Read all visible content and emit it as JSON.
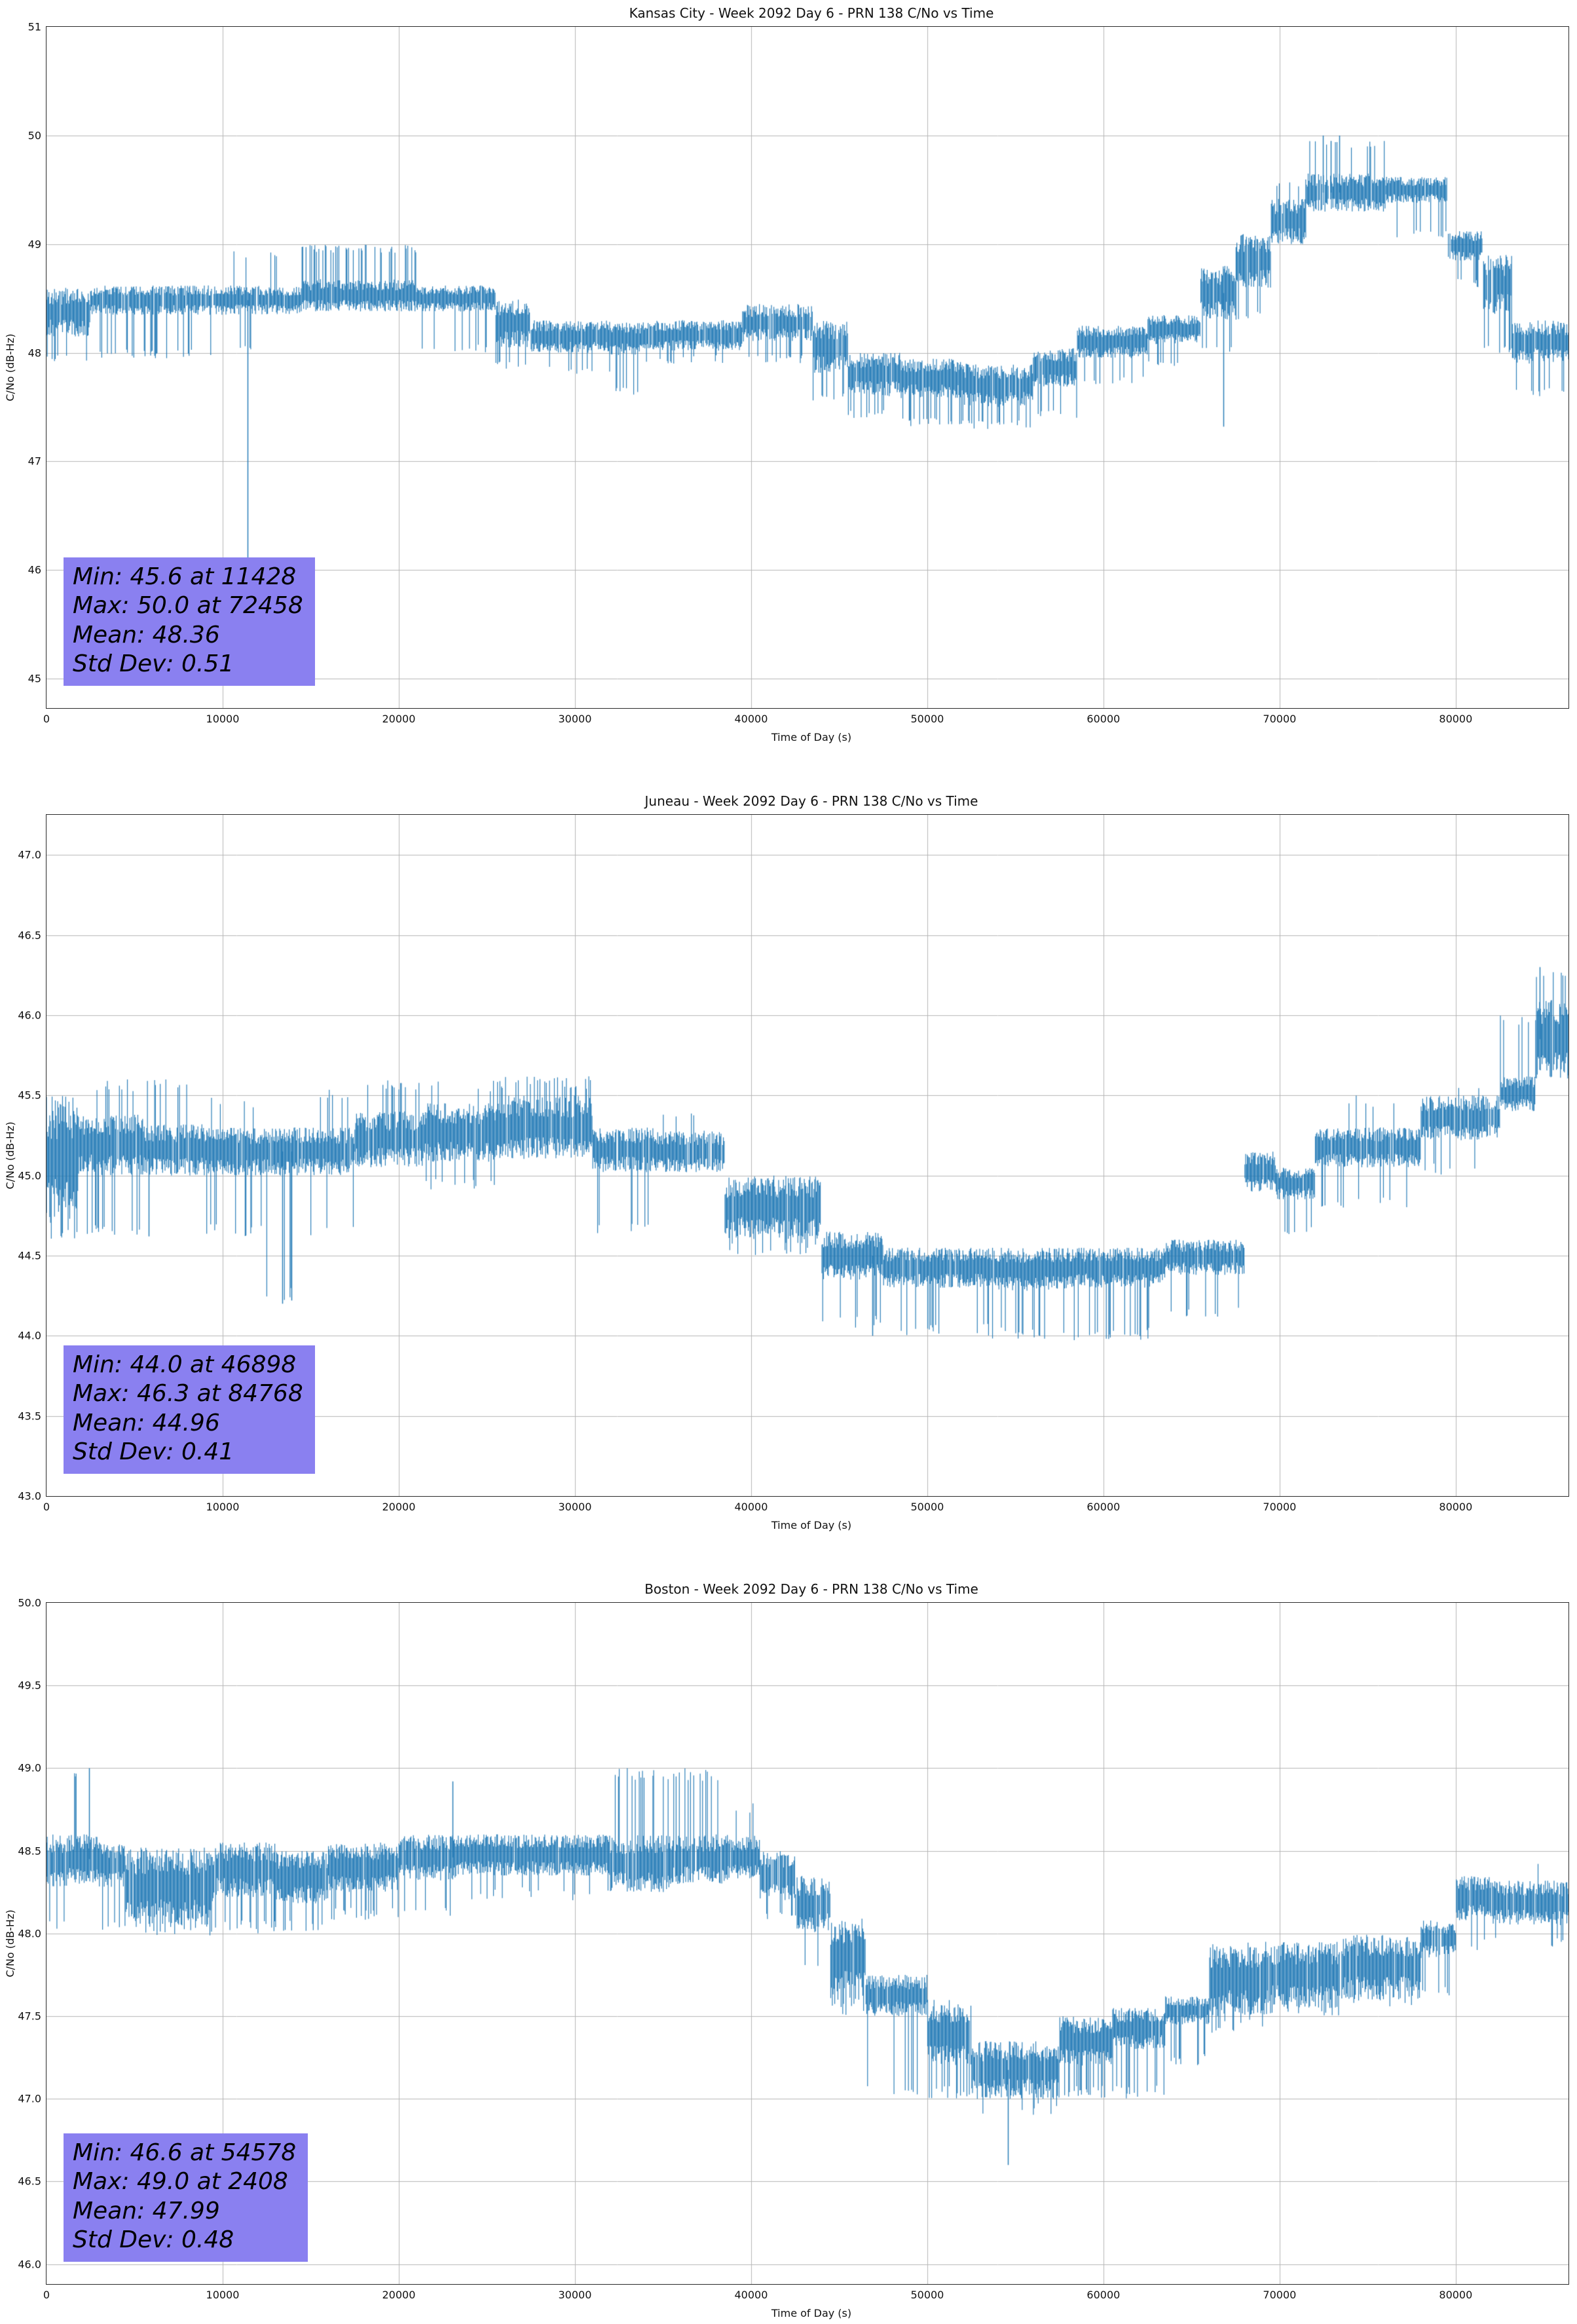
{
  "page": {
    "background": "#ffffff"
  },
  "chart_data": [
    {
      "type": "line",
      "title": "Kansas City - Week 2092 Day 6 - PRN 138 C/No vs Time",
      "xlabel": "Time of Day (s)",
      "ylabel": "C/No (dB-Hz)",
      "xlim": [
        0,
        86400
      ],
      "ylim": [
        44.73,
        51.0
      ],
      "xticks": [
        0,
        10000,
        20000,
        30000,
        40000,
        50000,
        60000,
        70000,
        80000
      ],
      "xtick_labels": [
        "0",
        "10000",
        "20000",
        "30000",
        "40000",
        "50000",
        "60000",
        "70000",
        "80000"
      ],
      "yticks": [
        45,
        46,
        47,
        48,
        49,
        50,
        51
      ],
      "ytick_labels": [
        "45",
        "46",
        "47",
        "48",
        "49",
        "50",
        "51"
      ],
      "line_color": "#1f77b4",
      "stats_box_color": "#8a80f0",
      "stats_lines": [
        "Min: 45.6 at 11428",
        "Max: 50.0 at 72458",
        "Mean: 48.36",
        "Std Dev: 0.51"
      ],
      "stats": {
        "min": 45.6,
        "min_at": 11428,
        "max": 50.0,
        "max_at": 72458,
        "mean": 48.36,
        "std_dev": 0.51
      },
      "grid": true,
      "legend": false,
      "segments": [
        {
          "x": [
            0,
            2500
          ],
          "lo": 48.15,
          "hi": 48.6,
          "sp_lo": 47.9,
          "p": 0.18
        },
        {
          "x": [
            2500,
            10500
          ],
          "lo": 48.35,
          "hi": 48.62,
          "sp_lo": 47.95,
          "p": 0.12
        },
        {
          "x": [
            10500,
            14500
          ],
          "lo": 48.35,
          "hi": 48.62,
          "sp_lo": 48.0,
          "sp_hi": 48.95,
          "p": 0.08
        },
        {
          "x": [
            14500,
            21000
          ],
          "lo": 48.38,
          "hi": 48.68,
          "sp_hi": 49.0,
          "p": 0.28
        },
        {
          "x": [
            21000,
            25500
          ],
          "lo": 48.38,
          "hi": 48.62,
          "sp_lo": 48.0,
          "p": 0.1
        },
        {
          "x": [
            25500,
            27500
          ],
          "lo": 48.05,
          "hi": 48.5,
          "sp_lo": 47.85,
          "p": 0.2
        },
        {
          "x": [
            27500,
            32000
          ],
          "lo": 48.0,
          "hi": 48.3,
          "sp_lo": 47.8,
          "p": 0.1
        },
        {
          "x": [
            32000,
            34000
          ],
          "lo": 47.98,
          "hi": 48.28,
          "sp_lo": 47.6,
          "p": 0.16
        },
        {
          "x": [
            34000,
            39500
          ],
          "lo": 48.02,
          "hi": 48.3,
          "sp_lo": 47.9,
          "p": 0.08
        },
        {
          "x": [
            39500,
            43500
          ],
          "lo": 48.1,
          "hi": 48.45,
          "sp_lo": 47.9,
          "p": 0.1
        },
        {
          "x": [
            43500,
            45500
          ],
          "lo": 47.8,
          "hi": 48.3,
          "sp_lo": 47.55,
          "p": 0.2
        },
        {
          "x": [
            45500,
            48500
          ],
          "lo": 47.6,
          "hi": 48.0,
          "sp_lo": 47.4,
          "p": 0.15
        },
        {
          "x": [
            48500,
            52000
          ],
          "lo": 47.58,
          "hi": 47.95,
          "sp_lo": 47.32,
          "p": 0.2
        },
        {
          "x": [
            52000,
            56000
          ],
          "lo": 47.5,
          "hi": 47.9,
          "sp_lo": 47.3,
          "p": 0.3
        },
        {
          "x": [
            56000,
            58500
          ],
          "lo": 47.68,
          "hi": 48.05,
          "sp_lo": 47.4,
          "p": 0.15
        },
        {
          "x": [
            58500,
            62500
          ],
          "lo": 47.95,
          "hi": 48.25,
          "sp_lo": 47.7,
          "p": 0.1
        },
        {
          "x": [
            62500,
            65500
          ],
          "lo": 48.08,
          "hi": 48.35,
          "sp_lo": 47.85,
          "p": 0.08
        },
        {
          "x": [
            65500,
            67500
          ],
          "lo": 48.3,
          "hi": 48.8,
          "sp_lo": 48.0,
          "p": 0.1
        },
        {
          "x": [
            67500,
            69500
          ],
          "lo": 48.6,
          "hi": 49.1,
          "sp_lo": 48.3,
          "p": 0.1
        },
        {
          "x": [
            69500,
            71500
          ],
          "lo": 49.0,
          "hi": 49.42,
          "sp_hi": 49.6,
          "p": 0.15
        },
        {
          "x": [
            71500,
            76000
          ],
          "lo": 49.3,
          "hi": 49.65,
          "sp_hi": 49.95,
          "p": 0.15
        },
        {
          "x": [
            76000,
            79500
          ],
          "lo": 49.38,
          "hi": 49.62,
          "sp_lo": 49.05,
          "p": 0.1
        },
        {
          "x": [
            79500,
            81500
          ],
          "lo": 48.85,
          "hi": 49.12,
          "sp_lo": 48.6,
          "p": 0.1
        },
        {
          "x": [
            81500,
            83200
          ],
          "lo": 48.35,
          "hi": 48.9,
          "sp_lo": 48.0,
          "p": 0.2
        },
        {
          "x": [
            83200,
            86400
          ],
          "lo": 47.9,
          "hi": 48.3,
          "sp_lo": 47.6,
          "p": 0.2
        }
      ],
      "spikes": [
        {
          "x": 11428,
          "y": 45.6
        },
        {
          "x": 66800,
          "y": 47.32
        },
        {
          "x": 72458,
          "y": 50.0
        },
        {
          "x": 72900,
          "y": 49.95
        },
        {
          "x": 73400,
          "y": 50.0
        }
      ]
    },
    {
      "type": "line",
      "title": "Juneau - Week 2092 Day 6 - PRN 138 C/No vs Time",
      "xlabel": "Time of Day (s)",
      "ylabel": "C/No (dB-Hz)",
      "xlim": [
        0,
        86400
      ],
      "ylim": [
        43.0,
        47.25
      ],
      "xticks": [
        0,
        10000,
        20000,
        30000,
        40000,
        50000,
        60000,
        70000,
        80000
      ],
      "xtick_labels": [
        "0",
        "10000",
        "20000",
        "30000",
        "40000",
        "50000",
        "60000",
        "70000",
        "80000"
      ],
      "yticks": [
        43.0,
        43.5,
        44.0,
        44.5,
        45.0,
        45.5,
        46.0,
        46.5,
        47.0
      ],
      "ytick_labels": [
        "43.0",
        "43.5",
        "44.0",
        "44.5",
        "45.0",
        "45.5",
        "46.0",
        "46.5",
        "47.0"
      ],
      "line_color": "#1f77b4",
      "stats_box_color": "#8a80f0",
      "stats_lines": [
        "Min: 44.0 at 46898",
        "Max: 46.3 at 84768",
        "Mean: 44.96",
        "Std Dev: 0.41"
      ],
      "stats": {
        "min": 44.0,
        "min_at": 46898,
        "max": 46.3,
        "max_at": 84768,
        "mean": 44.96,
        "std_dev": 0.41
      },
      "grid": true,
      "legend": false,
      "segments": [
        {
          "x": [
            0,
            1800
          ],
          "lo": 44.7,
          "hi": 45.5,
          "sp_lo": 44.6,
          "p": 0.15
        },
        {
          "x": [
            1800,
            5500
          ],
          "lo": 45.0,
          "hi": 45.38,
          "sp_lo": 44.62,
          "sp_hi": 45.6,
          "p": 0.22
        },
        {
          "x": [
            5500,
            9000
          ],
          "lo": 45.0,
          "hi": 45.32,
          "sp_hi": 45.6,
          "p": 0.18
        },
        {
          "x": [
            9000,
            12500
          ],
          "lo": 45.0,
          "hi": 45.3,
          "sp_lo": 44.62,
          "sp_hi": 45.5,
          "p": 0.15
        },
        {
          "x": [
            12500,
            14500
          ],
          "lo": 45.0,
          "hi": 45.3,
          "sp_lo": 44.22,
          "p": 0.1
        },
        {
          "x": [
            14500,
            17500
          ],
          "lo": 45.0,
          "hi": 45.3,
          "sp_lo": 44.62,
          "sp_hi": 45.55,
          "p": 0.18
        },
        {
          "x": [
            17500,
            21500
          ],
          "lo": 45.05,
          "hi": 45.4,
          "sp_hi": 45.6,
          "p": 0.22
        },
        {
          "x": [
            21500,
            25500
          ],
          "lo": 45.08,
          "hi": 45.45,
          "sp_lo": 44.9,
          "sp_hi": 45.6,
          "p": 0.2
        },
        {
          "x": [
            25500,
            31000
          ],
          "lo": 45.1,
          "hi": 45.5,
          "sp_hi": 45.62,
          "p": 0.28
        },
        {
          "x": [
            31000,
            34500
          ],
          "lo": 45.02,
          "hi": 45.3,
          "sp_lo": 44.62,
          "p": 0.1
        },
        {
          "x": [
            34500,
            38500
          ],
          "lo": 45.02,
          "hi": 45.28,
          "sp_hi": 45.4,
          "p": 0.08
        },
        {
          "x": [
            38500,
            44000
          ],
          "lo": 44.6,
          "hi": 45.0,
          "sp_lo": 44.5,
          "p": 0.1
        },
        {
          "x": [
            44000,
            47500
          ],
          "lo": 44.35,
          "hi": 44.65,
          "sp_lo": 44.05,
          "p": 0.12
        },
        {
          "x": [
            47500,
            53500
          ],
          "lo": 44.3,
          "hi": 44.55,
          "sp_lo": 44.0,
          "p": 0.12
        },
        {
          "x": [
            53500,
            58000
          ],
          "lo": 44.28,
          "hi": 44.55,
          "sp_lo": 43.98,
          "p": 0.2
        },
        {
          "x": [
            58000,
            63500
          ],
          "lo": 44.3,
          "hi": 44.55,
          "sp_lo": 43.97,
          "p": 0.15
        },
        {
          "x": [
            63500,
            68000
          ],
          "lo": 44.38,
          "hi": 44.6,
          "sp_lo": 44.1,
          "p": 0.1
        },
        {
          "x": [
            68000,
            69800
          ],
          "lo": 44.9,
          "hi": 45.15,
          "sp_lo": 44.6,
          "p": 0.08
        },
        {
          "x": [
            69800,
            72000
          ],
          "lo": 44.85,
          "hi": 45.05,
          "sp_lo": 44.6,
          "p": 0.15
        },
        {
          "x": [
            72000,
            78000
          ],
          "lo": 45.05,
          "hi": 45.3,
          "sp_lo": 44.8,
          "sp_hi": 45.5,
          "p": 0.12
        },
        {
          "x": [
            78000,
            82500
          ],
          "lo": 45.22,
          "hi": 45.5,
          "sp_lo": 45.0,
          "sp_hi": 45.58,
          "p": 0.1
        },
        {
          "x": [
            82500,
            84500
          ],
          "lo": 45.4,
          "hi": 45.62,
          "sp_hi": 46.0,
          "p": 0.1
        },
        {
          "x": [
            84500,
            86400
          ],
          "lo": 45.6,
          "hi": 46.1,
          "sp_hi": 46.28,
          "p": 0.15
        }
      ],
      "spikes": [
        {
          "x": 46898,
          "y": 44.0
        },
        {
          "x": 13400,
          "y": 44.2
        },
        {
          "x": 13900,
          "y": 44.22
        },
        {
          "x": 5800,
          "y": 44.62
        },
        {
          "x": 84768,
          "y": 46.3
        }
      ]
    },
    {
      "type": "line",
      "title": "Boston - Week 2092 Day 6 - PRN 138 C/No vs Time",
      "xlabel": "Time of Day (s)",
      "ylabel": "C/No (dB-Hz)",
      "xlim": [
        0,
        86400
      ],
      "ylim": [
        45.88,
        50.0
      ],
      "xticks": [
        0,
        10000,
        20000,
        30000,
        40000,
        50000,
        60000,
        70000,
        80000
      ],
      "xtick_labels": [
        "0",
        "10000",
        "20000",
        "30000",
        "40000",
        "50000",
        "60000",
        "70000",
        "80000"
      ],
      "yticks": [
        46.0,
        46.5,
        47.0,
        47.5,
        48.0,
        48.5,
        49.0,
        49.5,
        50.0
      ],
      "ytick_labels": [
        "46.0",
        "46.5",
        "47.0",
        "47.5",
        "48.0",
        "48.5",
        "49.0",
        "49.5",
        "50.0"
      ],
      "line_color": "#1f77b4",
      "stats_box_color": "#8a80f0",
      "stats_lines": [
        "Min: 46.6 at 54578",
        "Max: 49.0 at 2408",
        "Mean: 47.99",
        "Std Dev: 0.48"
      ],
      "stats": {
        "min": 46.6,
        "min_at": 54578,
        "max": 49.0,
        "max_at": 2408,
        "mean": 47.99,
        "std_dev": 0.48
      },
      "grid": true,
      "legend": false,
      "segments": [
        {
          "x": [
            0,
            1200
          ],
          "lo": 48.28,
          "hi": 48.6,
          "sp_lo": 48.0,
          "p": 0.2
        },
        {
          "x": [
            1200,
            3000
          ],
          "lo": 48.3,
          "hi": 48.6,
          "sp_hi": 48.98,
          "p": 0.1
        },
        {
          "x": [
            3000,
            4500
          ],
          "lo": 48.28,
          "hi": 48.55,
          "sp_lo": 48.0,
          "p": 0.15
        },
        {
          "x": [
            4500,
            9500
          ],
          "lo": 48.05,
          "hi": 48.52,
          "sp_lo": 47.98,
          "p": 0.25
        },
        {
          "x": [
            9500,
            13000
          ],
          "lo": 48.22,
          "hi": 48.55,
          "sp_lo": 48.0,
          "p": 0.22
        },
        {
          "x": [
            13000,
            16000
          ],
          "lo": 48.18,
          "hi": 48.5,
          "sp_lo": 48.0,
          "p": 0.2
        },
        {
          "x": [
            16000,
            20000
          ],
          "lo": 48.25,
          "hi": 48.55,
          "sp_lo": 48.08,
          "p": 0.15
        },
        {
          "x": [
            20000,
            23500
          ],
          "lo": 48.32,
          "hi": 48.6,
          "sp_lo": 48.1,
          "p": 0.1
        },
        {
          "x": [
            23500,
            32000
          ],
          "lo": 48.35,
          "hi": 48.6,
          "sp_lo": 48.2,
          "p": 0.1
        },
        {
          "x": [
            32000,
            35500
          ],
          "lo": 48.25,
          "hi": 48.6,
          "sp_hi": 49.0,
          "p": 0.12
        },
        {
          "x": [
            35500,
            38500
          ],
          "lo": 48.3,
          "hi": 48.6,
          "sp_hi": 49.0,
          "p": 0.15
        },
        {
          "x": [
            38500,
            40500
          ],
          "lo": 48.32,
          "hi": 48.6,
          "sp_hi": 48.8,
          "p": 0.08
        },
        {
          "x": [
            40500,
            42500
          ],
          "lo": 48.2,
          "hi": 48.5,
          "sp_lo": 48.08,
          "p": 0.1
        },
        {
          "x": [
            42500,
            44500
          ],
          "lo": 48.0,
          "hi": 48.35,
          "sp_lo": 47.8,
          "p": 0.15
        },
        {
          "x": [
            44500,
            46500
          ],
          "lo": 47.6,
          "hi": 48.1,
          "sp_lo": 47.5,
          "p": 0.2
        },
        {
          "x": [
            46500,
            50000
          ],
          "lo": 47.5,
          "hi": 47.75,
          "sp_lo": 47.02,
          "p": 0.12
        },
        {
          "x": [
            50000,
            52500
          ],
          "lo": 47.2,
          "hi": 47.6,
          "sp_lo": 47.0,
          "p": 0.2
        },
        {
          "x": [
            52500,
            57500
          ],
          "lo": 47.0,
          "hi": 47.35,
          "sp_lo": 46.9,
          "p": 0.12
        },
        {
          "x": [
            57500,
            60500
          ],
          "lo": 47.2,
          "hi": 47.5,
          "sp_lo": 47.0,
          "p": 0.2
        },
        {
          "x": [
            60500,
            63500
          ],
          "lo": 47.3,
          "hi": 47.55,
          "sp_lo": 47.0,
          "p": 0.18
        },
        {
          "x": [
            63500,
            66000
          ],
          "lo": 47.45,
          "hi": 47.62,
          "sp_lo": 47.2,
          "p": 0.15
        },
        {
          "x": [
            66000,
            69500
          ],
          "lo": 47.5,
          "hi": 47.95,
          "sp_lo": 47.4,
          "p": 0.2
        },
        {
          "x": [
            69500,
            73500
          ],
          "lo": 47.55,
          "hi": 47.95,
          "sp_lo": 47.5,
          "p": 0.2
        },
        {
          "x": [
            73500,
            78000
          ],
          "lo": 47.6,
          "hi": 48.0,
          "sp_lo": 47.55,
          "p": 0.18
        },
        {
          "x": [
            78000,
            80000
          ],
          "lo": 47.85,
          "hi": 48.08,
          "sp_lo": 47.6,
          "p": 0.1
        },
        {
          "x": [
            80000,
            82000
          ],
          "lo": 48.08,
          "hi": 48.35,
          "sp_lo": 47.9,
          "p": 0.1
        },
        {
          "x": [
            82000,
            86400
          ],
          "lo": 48.05,
          "hi": 48.32,
          "sp_lo": 47.9,
          "sp_hi": 48.5,
          "p": 0.12
        }
      ],
      "spikes": [
        {
          "x": 2408,
          "y": 49.0
        },
        {
          "x": 23050,
          "y": 48.92
        },
        {
          "x": 54578,
          "y": 46.6
        }
      ]
    }
  ]
}
